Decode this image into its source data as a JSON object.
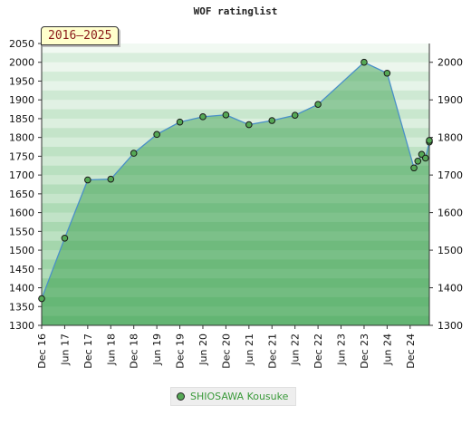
{
  "badge": "2016–2025",
  "chart_data": {
    "type": "area",
    "title": "WOF ratinglist",
    "xlabel": "",
    "ylabel": "",
    "ylim": [
      1300,
      2050
    ],
    "yticks_left": [
      1300,
      1350,
      1400,
      1450,
      1500,
      1550,
      1600,
      1650,
      1700,
      1750,
      1800,
      1850,
      1900,
      1950,
      2000,
      2050
    ],
    "yticks_right": [
      1300,
      1400,
      1500,
      1600,
      1700,
      1800,
      1900,
      2000
    ],
    "xlim": [
      "2016-12",
      "2025-05"
    ],
    "xticks": [
      {
        "date": "2016-12",
        "label": "Dec 16"
      },
      {
        "date": "2017-06",
        "label": "Jun 17"
      },
      {
        "date": "2017-12",
        "label": "Dec 17"
      },
      {
        "date": "2018-06",
        "label": "Jun 18"
      },
      {
        "date": "2018-12",
        "label": "Dec 18"
      },
      {
        "date": "2019-06",
        "label": "Jun 19"
      },
      {
        "date": "2019-12",
        "label": "Dec 19"
      },
      {
        "date": "2020-06",
        "label": "Jun 20"
      },
      {
        "date": "2020-12",
        "label": "Dec 20"
      },
      {
        "date": "2021-06",
        "label": "Jun 21"
      },
      {
        "date": "2021-12",
        "label": "Dec 21"
      },
      {
        "date": "2022-06",
        "label": "Jun 22"
      },
      {
        "date": "2022-12",
        "label": "Dec 22"
      },
      {
        "date": "2023-06",
        "label": "Jun 23"
      },
      {
        "date": "2023-12",
        "label": "Dec 23"
      },
      {
        "date": "2024-06",
        "label": "Jun 24"
      },
      {
        "date": "2024-12",
        "label": "Dec 24"
      }
    ],
    "grid": true,
    "legend": "bottom",
    "series": [
      {
        "name": "SHIOSAWA Kousuke",
        "color": "#55a855",
        "points": [
          {
            "x": "2016-12",
            "y": 1371
          },
          {
            "x": "2017-06",
            "y": 1532
          },
          {
            "x": "2017-12",
            "y": 1687
          },
          {
            "x": "2018-06",
            "y": 1689
          },
          {
            "x": "2018-12",
            "y": 1758
          },
          {
            "x": "2019-06",
            "y": 1808
          },
          {
            "x": "2019-12",
            "y": 1841
          },
          {
            "x": "2020-06",
            "y": 1855
          },
          {
            "x": "2020-12",
            "y": 1860
          },
          {
            "x": "2021-06",
            "y": 1834
          },
          {
            "x": "2021-12",
            "y": 1845
          },
          {
            "x": "2022-06",
            "y": 1859
          },
          {
            "x": "2022-12",
            "y": 1888
          },
          {
            "x": "2023-12",
            "y": 2000
          },
          {
            "x": "2024-06",
            "y": 1971
          },
          {
            "x": "2025-01",
            "y": 1719
          },
          {
            "x": "2025-02",
            "y": 1737
          },
          {
            "x": "2025-03",
            "y": 1755
          },
          {
            "x": "2025-04",
            "y": 1745
          },
          {
            "x": "2025-05",
            "y": 1788
          },
          {
            "x": "2025-05",
            "y": 1792
          }
        ]
      }
    ]
  }
}
